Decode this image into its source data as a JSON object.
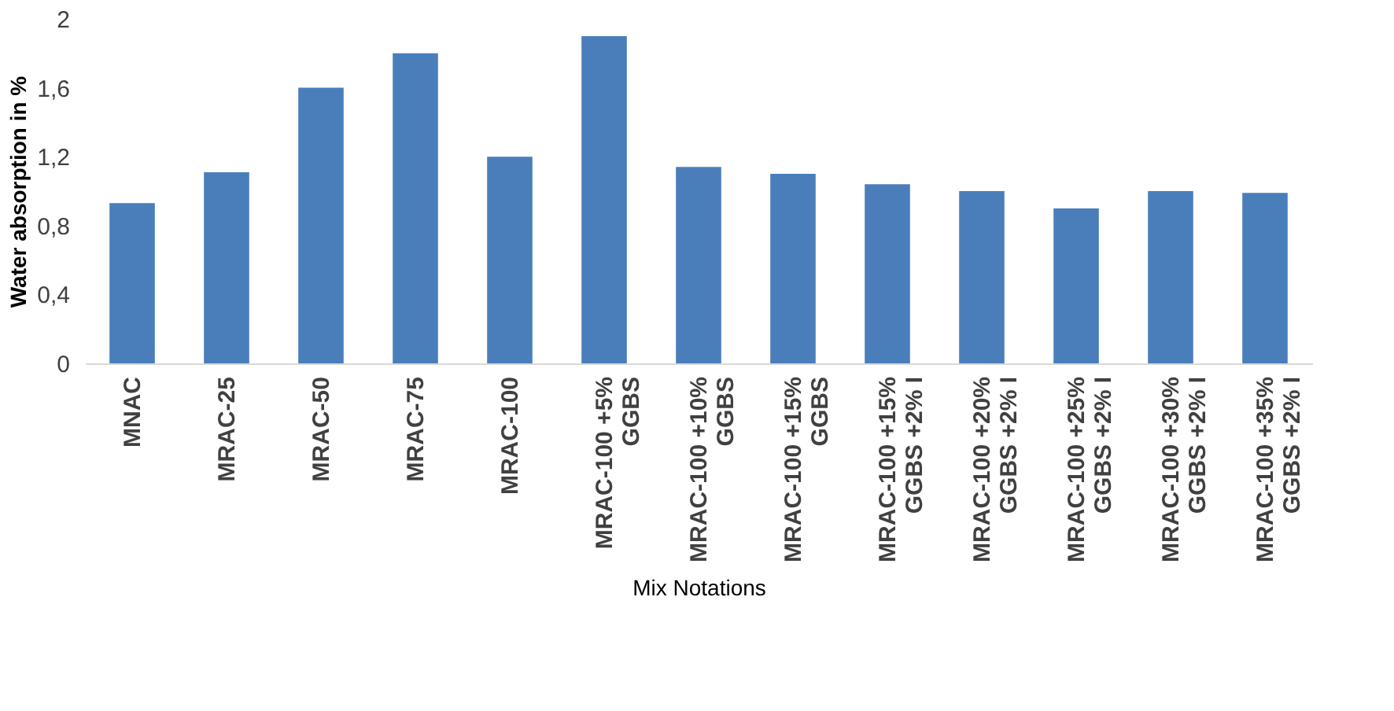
{
  "chart_data": {
    "type": "bar",
    "xlabel": "Mix Notations",
    "ylabel": "Water absorption in %",
    "categories": [
      "MNAC",
      "MRAC-25",
      "MRAC-50",
      "MRAC-75",
      "MRAC-100",
      "MRAC-100 +5% GGBS",
      "MRAC-100 +10% GGBS",
      "MRAC-100 +15% GGBS",
      "MRAC-100 +15% GGBS +2% I",
      "MRAC-100 +20% GGBS +2% I",
      "MRAC-100 +25% GGBS +2% I",
      "MRAC-100 +30% GGBS +2% I",
      "MRAC-100 +35% GGBS +2% I"
    ],
    "values": [
      0.93,
      1.11,
      1.6,
      1.8,
      1.2,
      1.9,
      1.14,
      1.1,
      1.04,
      1.0,
      0.9,
      1.0,
      0.99
    ],
    "color": "#4a7ebb",
    "ylim": [
      0,
      2
    ],
    "yticks": [
      0,
      {
        "value": 0.4,
        "label": "0,4"
      },
      {
        "value": 0.8,
        "label": "0,8"
      },
      {
        "value": 1.2,
        "label": "1,2"
      },
      {
        "value": 1.6,
        "label": "1,6"
      },
      2
    ],
    "grid": false
  }
}
